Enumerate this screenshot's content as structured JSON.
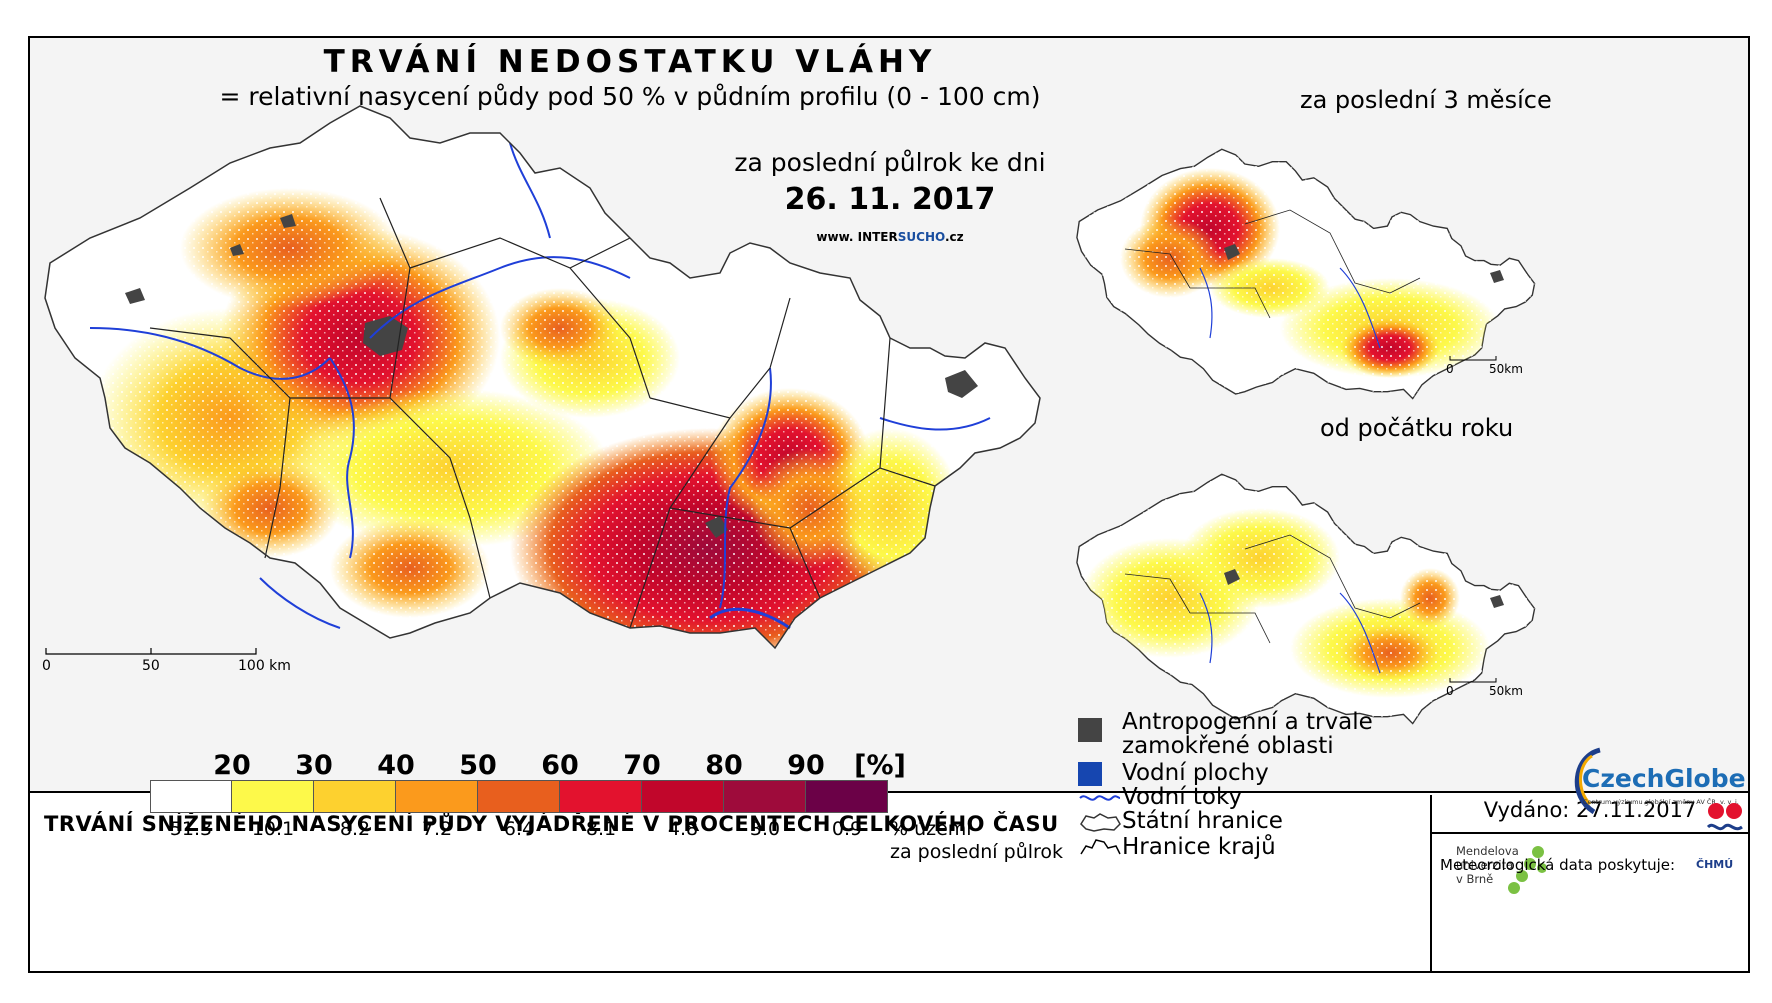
{
  "header": {
    "title": "TRVÁNÍ NEDOSTATKU VLÁHY",
    "subtitle": "= relativní nasycení půdy pod 50 % v půdním profilu (0 - 100 cm)",
    "period": "za poslední půlrok ke dni",
    "date": "26. 11. 2017",
    "website_prefix": "www. INTER",
    "website_highlight": "SUCHO",
    "website_suffix": ".cz"
  },
  "insets": {
    "three_months_label": "za poslední 3 měsíce",
    "year_start_label": "od počátku roku"
  },
  "scales": {
    "main": [
      "0",
      "50",
      "100 km"
    ],
    "inset": [
      "0",
      "50km"
    ]
  },
  "legend": {
    "title": "TRVÁNÍ SNÍŽENÉHO NASYCENÍ PŮDY VYJÁDŘENÉ V PROCENTECH CELKOVÉHO ČASU",
    "ticks": [
      "20",
      "30",
      "40",
      "50",
      "60",
      "70",
      "80",
      "90",
      "[%]"
    ],
    "classes": [
      {
        "color": "#ffffff",
        "share": "51.3"
      },
      {
        "color": "#fdf94a",
        "share": "10.1"
      },
      {
        "color": "#fdd12f",
        "share": "8.2"
      },
      {
        "color": "#fb9a1c",
        "share": "7.2"
      },
      {
        "color": "#e85f1e",
        "share": "6.4"
      },
      {
        "color": "#e3122e",
        "share": "8.1"
      },
      {
        "color": "#c1062b",
        "share": "4.8"
      },
      {
        "color": "#9e0b3b",
        "share": "3.0"
      },
      {
        "color": "#6b0147",
        "share": "0.9"
      }
    ],
    "unit_note_line1": "% území",
    "unit_note_line2": "za poslední půlrok"
  },
  "symbols": {
    "anthropogenic_line1": "Antropogenní a trvale",
    "anthropogenic_line2": "zamokřené oblasti",
    "water_bodies": "Vodní plochy",
    "rivers": "Vodní toky",
    "state_border": "Státní hranice",
    "region_border": "Hranice krajů",
    "anthropogenic_color": "#444444",
    "water_color": "#1646b0",
    "river_color": "#1f3fd8"
  },
  "credits": {
    "issued": "Vydáno: 27.11.2017",
    "mendel_line1": "Mendelova",
    "mendel_line2": "univerzita",
    "mendel_line3": "v Brně",
    "czechglobe": "CzechGlobe",
    "czechglobe_sub": "Centrum výzkumu globální změny AV ČR, v. v. i.",
    "meteo": "Meteorologická data poskytuje:",
    "chmu": "ČHMÚ"
  }
}
